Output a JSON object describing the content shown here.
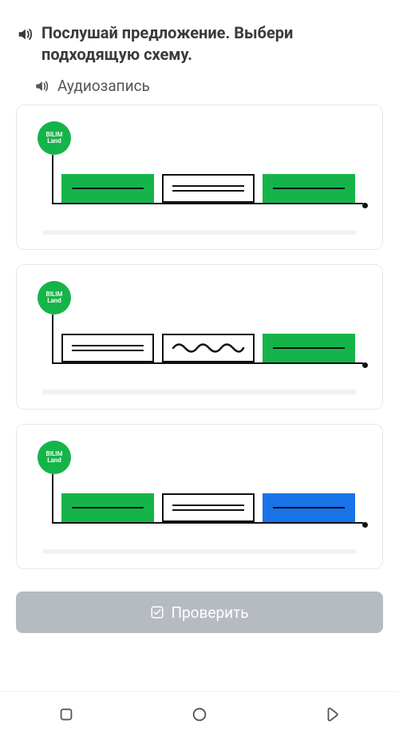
{
  "colors": {
    "text": "#3a3a3a",
    "subtext": "#555555",
    "card_border": "#e6e8eb",
    "green": "#15b44a",
    "blue": "#1973e8",
    "black": "#111111",
    "white": "#ffffff",
    "check_btn_bg": "#b6bbc1",
    "faint": "#f1f2f4"
  },
  "instruction": "Послушай предложение. Выбери подходящую схему.",
  "audio_label": "Аудиозапись",
  "badge_text": "BILIM\nLand",
  "options": [
    {
      "id": "opt-1",
      "boxes": [
        {
          "fill": "green",
          "inner": "line"
        },
        {
          "fill": "white",
          "inner": "double"
        },
        {
          "fill": "green",
          "inner": "line"
        }
      ],
      "terminator": "."
    },
    {
      "id": "opt-2",
      "boxes": [
        {
          "fill": "white",
          "inner": "double"
        },
        {
          "fill": "white",
          "inner": "wave"
        },
        {
          "fill": "green",
          "inner": "line"
        }
      ],
      "terminator": "."
    },
    {
      "id": "opt-3",
      "boxes": [
        {
          "fill": "green",
          "inner": "line"
        },
        {
          "fill": "white",
          "inner": "double"
        },
        {
          "fill": "blue",
          "inner": "line"
        }
      ],
      "terminator": "."
    }
  ],
  "check_button_label": "Проверить"
}
